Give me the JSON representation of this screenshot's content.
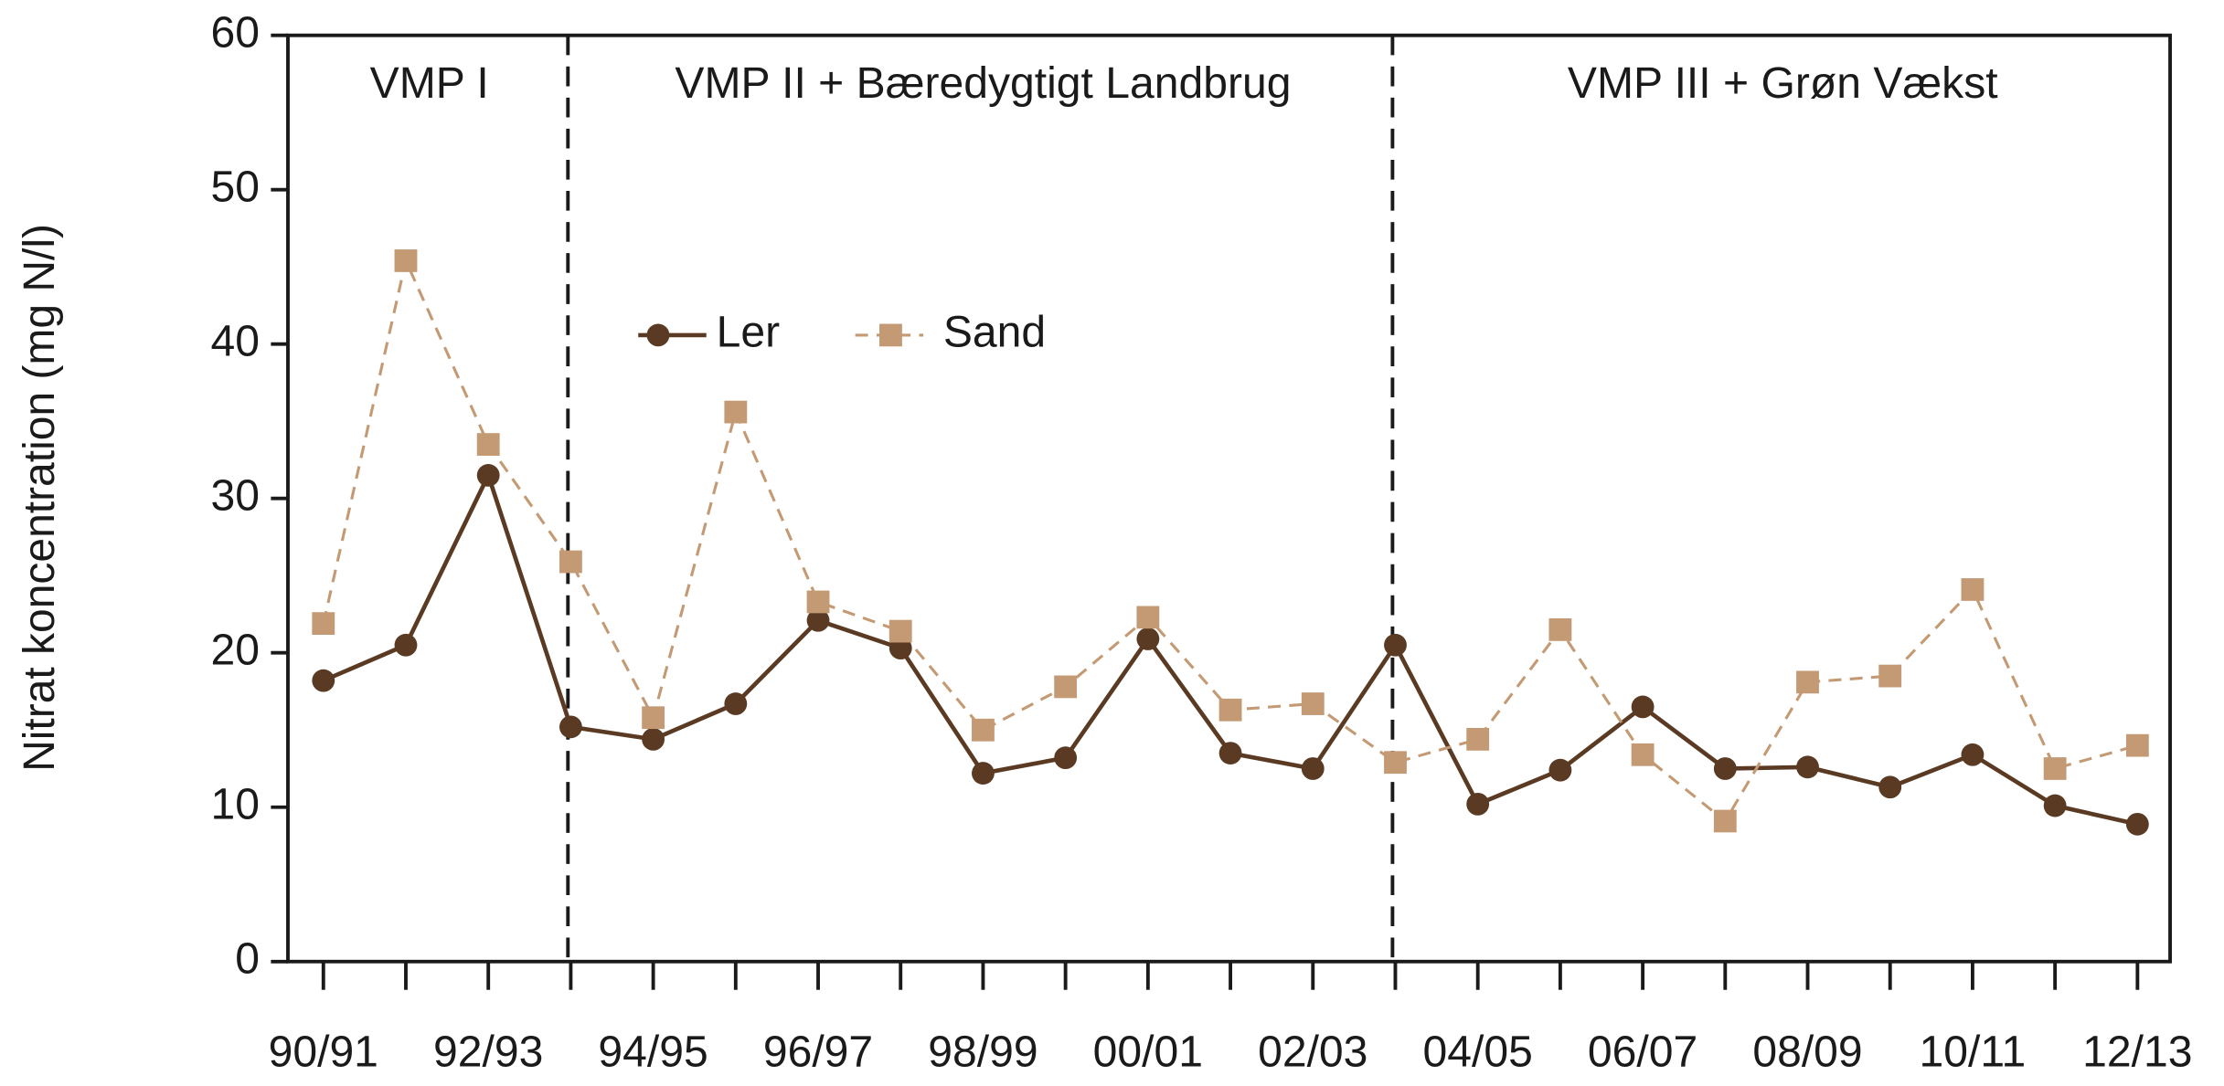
{
  "chart_data": {
    "type": "line",
    "y_label": "Nitrat koncentration (mg N/l)",
    "categories": [
      "90/91",
      null,
      "92/93",
      null,
      "94/95",
      null,
      "96/97",
      null,
      "98/99",
      null,
      "00/01",
      null,
      "02/03",
      null,
      "04/05",
      null,
      "06/07",
      null,
      "08/09",
      null,
      "10/11",
      null,
      "12/13"
    ],
    "series": [
      {
        "name": "Ler",
        "color": "#5a3a22",
        "dashed": false,
        "marker": "circle",
        "values": [
          18.2,
          20.5,
          31.5,
          15.2,
          14.4,
          16.7,
          22.1,
          20.3,
          12.2,
          13.2,
          20.9,
          13.5,
          12.5,
          20.5,
          10.2,
          12.4,
          16.5,
          12.5,
          12.6,
          11.3,
          13.4,
          10.1,
          8.9
        ]
      },
      {
        "name": "Sand",
        "color": "#c49a74",
        "dashed": true,
        "marker": "square",
        "values": [
          21.9,
          45.4,
          33.5,
          25.9,
          15.8,
          35.6,
          23.3,
          21.4,
          15.0,
          17.8,
          22.3,
          16.3,
          16.7,
          12.9,
          14.4,
          21.5,
          13.4,
          9.1,
          18.1,
          18.5,
          24.1,
          12.5,
          14.0
        ]
      }
    ],
    "periods": [
      {
        "label": "VMP I",
        "start": 0,
        "end": 3
      },
      {
        "label": "VMP II + Bæredygtigt Landbrug",
        "start": 3,
        "end": 13
      },
      {
        "label": "VMP III + Grøn Vækst",
        "start": 13,
        "end": 22
      }
    ],
    "ylim": [
      0,
      60
    ],
    "yticks": [
      0,
      10,
      20,
      30,
      40,
      50,
      60
    ],
    "grid": false
  }
}
